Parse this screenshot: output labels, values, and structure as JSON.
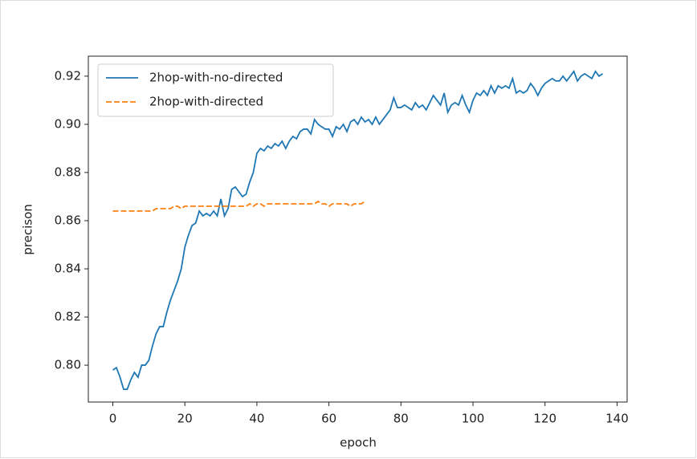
{
  "chart_data": {
    "type": "line",
    "xlabel": "epoch",
    "ylabel": "precison",
    "xlim": [
      -6.8,
      142.8
    ],
    "ylim": [
      0.7847,
      0.9283
    ],
    "xticks": [
      0,
      20,
      40,
      60,
      80,
      100,
      120,
      140
    ],
    "yticks": [
      {
        "value": 0.8,
        "label": "0.80"
      },
      {
        "value": 0.82,
        "label": "0.82"
      },
      {
        "value": 0.84,
        "label": "0.84"
      },
      {
        "value": 0.86,
        "label": "0.86"
      },
      {
        "value": 0.88,
        "label": "0.88"
      },
      {
        "value": 0.9,
        "label": "0.90"
      },
      {
        "value": 0.92,
        "label": "0.92"
      }
    ],
    "legend": "upper left",
    "series": [
      {
        "name": "2hop-with-no-directed",
        "color": "#1f77b4",
        "dash": "solid",
        "x": [
          0,
          1,
          2,
          3,
          4,
          5,
          6,
          7,
          8,
          9,
          10,
          11,
          12,
          13,
          14,
          15,
          16,
          17,
          18,
          19,
          20,
          21,
          22,
          23,
          24,
          25,
          26,
          27,
          28,
          29,
          30,
          31,
          32,
          33,
          34,
          35,
          36,
          37,
          38,
          39,
          40,
          41,
          42,
          43,
          44,
          45,
          46,
          47,
          48,
          49,
          50,
          51,
          52,
          53,
          54,
          55,
          56,
          57,
          58,
          59,
          60,
          61,
          62,
          63,
          64,
          65,
          66,
          67,
          68,
          69,
          70,
          71,
          72,
          73,
          74,
          75,
          76,
          77,
          78,
          79,
          80,
          81,
          82,
          83,
          84,
          85,
          86,
          87,
          88,
          89,
          90,
          91,
          92,
          93,
          94,
          95,
          96,
          97,
          98,
          99,
          100,
          101,
          102,
          103,
          104,
          105,
          106,
          107,
          108,
          109,
          110,
          111,
          112,
          113,
          114,
          115,
          116,
          117,
          118,
          119,
          120,
          121,
          122,
          123,
          124,
          125,
          126,
          127,
          128,
          129,
          130,
          131,
          132,
          133,
          134,
          135,
          136
        ],
        "values": [
          0.798,
          0.799,
          0.795,
          0.79,
          0.79,
          0.794,
          0.797,
          0.795,
          0.8,
          0.8,
          0.802,
          0.808,
          0.813,
          0.816,
          0.816,
          0.822,
          0.827,
          0.831,
          0.835,
          0.84,
          0.849,
          0.854,
          0.858,
          0.859,
          0.864,
          0.862,
          0.863,
          0.862,
          0.864,
          0.862,
          0.869,
          0.862,
          0.865,
          0.873,
          0.874,
          0.872,
          0.87,
          0.871,
          0.876,
          0.88,
          0.888,
          0.89,
          0.889,
          0.891,
          0.89,
          0.892,
          0.891,
          0.893,
          0.89,
          0.893,
          0.895,
          0.894,
          0.897,
          0.898,
          0.898,
          0.896,
          0.902,
          0.9,
          0.899,
          0.898,
          0.898,
          0.895,
          0.899,
          0.898,
          0.9,
          0.897,
          0.901,
          0.902,
          0.9,
          0.903,
          0.901,
          0.902,
          0.9,
          0.903,
          0.9,
          0.902,
          0.904,
          0.906,
          0.911,
          0.907,
          0.907,
          0.908,
          0.907,
          0.906,
          0.909,
          0.907,
          0.908,
          0.906,
          0.909,
          0.912,
          0.91,
          0.908,
          0.913,
          0.905,
          0.908,
          0.909,
          0.908,
          0.912,
          0.908,
          0.905,
          0.91,
          0.913,
          0.912,
          0.914,
          0.912,
          0.916,
          0.913,
          0.916,
          0.915,
          0.916,
          0.915,
          0.919,
          0.913,
          0.914,
          0.913,
          0.914,
          0.917,
          0.915,
          0.912,
          0.915,
          0.917,
          0.918,
          0.919,
          0.918,
          0.918,
          0.92,
          0.918,
          0.92,
          0.922,
          0.918,
          0.92,
          0.921,
          0.92,
          0.919,
          0.922,
          0.92,
          0.921
        ]
      },
      {
        "name": "2hop-with-directed",
        "color": "#ff7f0e",
        "dash": "dashed",
        "x": [
          0,
          1,
          2,
          3,
          4,
          5,
          6,
          7,
          8,
          9,
          10,
          11,
          12,
          13,
          14,
          15,
          16,
          17,
          18,
          19,
          20,
          21,
          22,
          23,
          24,
          25,
          26,
          27,
          28,
          29,
          30,
          31,
          32,
          33,
          34,
          35,
          36,
          37,
          38,
          39,
          40,
          41,
          42,
          43,
          44,
          45,
          46,
          47,
          48,
          49,
          50,
          51,
          52,
          53,
          54,
          55,
          56,
          57,
          58,
          59,
          60,
          61,
          62,
          63,
          64,
          65,
          66,
          67,
          68,
          69,
          70
        ],
        "values": [
          0.864,
          0.864,
          0.864,
          0.864,
          0.864,
          0.864,
          0.864,
          0.864,
          0.864,
          0.864,
          0.864,
          0.864,
          0.865,
          0.865,
          0.865,
          0.865,
          0.865,
          0.866,
          0.866,
          0.865,
          0.866,
          0.866,
          0.866,
          0.866,
          0.866,
          0.866,
          0.866,
          0.866,
          0.866,
          0.866,
          0.866,
          0.866,
          0.866,
          0.866,
          0.866,
          0.866,
          0.866,
          0.866,
          0.867,
          0.866,
          0.867,
          0.867,
          0.866,
          0.867,
          0.867,
          0.867,
          0.867,
          0.867,
          0.867,
          0.867,
          0.867,
          0.867,
          0.867,
          0.867,
          0.867,
          0.867,
          0.867,
          0.868,
          0.867,
          0.867,
          0.866,
          0.867,
          0.867,
          0.867,
          0.867,
          0.867,
          0.866,
          0.867,
          0.867,
          0.867,
          0.868
        ]
      }
    ]
  }
}
